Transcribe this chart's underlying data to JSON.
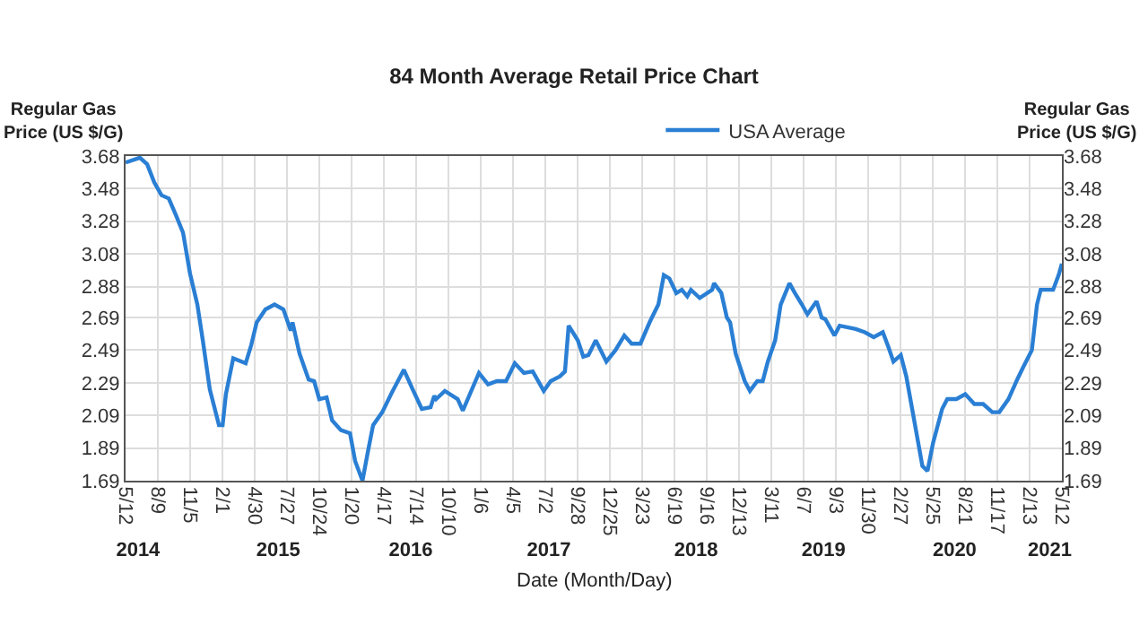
{
  "chart_data": {
    "type": "line",
    "title": "84 Month Average Retail Price Chart",
    "xlabel": "Date (Month/Day)",
    "ylabel": "Regular Gas\nPrice (US $/G)",
    "y2label": "Regular Gas\nPrice (US $/G)",
    "x": [
      "2014-05-12",
      "2014-06-20",
      "2014-07-10",
      "2014-07-29",
      "2014-08-18",
      "2014-09-07",
      "2014-09-26",
      "2014-10-16",
      "2014-11-04",
      "2014-11-24",
      "2014-12-09",
      "2014-12-28",
      "2015-01-22",
      "2015-02-01",
      "2015-02-10",
      "2015-03-02",
      "2015-04-05",
      "2015-04-20",
      "2015-05-05",
      "2015-05-29",
      "2015-06-23",
      "2015-07-17",
      "2015-08-06",
      "2015-08-11",
      "2015-08-30",
      "2015-09-24",
      "2015-10-09",
      "2015-10-23",
      "2015-11-12",
      "2015-11-27",
      "2015-12-21",
      "2016-01-15",
      "2016-01-29",
      "2016-02-18",
      "2016-03-04",
      "2016-03-18",
      "2016-04-12",
      "2016-05-06",
      "2016-06-10",
      "2016-07-04",
      "2016-07-29",
      "2016-08-22",
      "2016-09-01",
      "2016-09-06",
      "2016-09-30",
      "2016-11-04",
      "2016-11-18",
      "2017-01-01",
      "2017-01-26",
      "2017-02-19",
      "2017-03-16",
      "2017-04-09",
      "2017-05-04",
      "2017-05-28",
      "2017-06-27",
      "2017-07-16",
      "2017-08-10",
      "2017-08-24",
      "2017-09-03",
      "2017-09-28",
      "2017-10-13",
      "2017-10-27",
      "2017-11-16",
      "2017-12-15",
      "2018-01-09",
      "2018-02-02",
      "2018-02-22",
      "2018-03-18",
      "2018-04-12",
      "2018-05-06",
      "2018-05-21",
      "2018-06-05",
      "2018-06-24",
      "2018-07-09",
      "2018-07-24",
      "2018-08-03",
      "2018-08-27",
      "2018-09-30",
      "2018-10-05",
      "2018-10-25",
      "2018-11-09",
      "2018-11-18",
      "2018-12-03",
      "2018-12-28",
      "2019-01-11",
      "2019-01-31",
      "2019-02-15",
      "2019-03-01",
      "2019-03-21",
      "2019-04-05",
      "2019-04-29",
      "2019-05-14",
      "2019-06-02",
      "2019-06-17",
      "2019-07-12",
      "2019-07-26",
      "2019-08-05",
      "2019-08-30",
      "2019-09-13",
      "2019-10-27",
      "2019-11-21",
      "2019-12-15",
      "2020-01-09",
      "2020-01-24",
      "2020-02-07",
      "2020-02-27",
      "2020-03-13",
      "2020-04-06",
      "2020-04-26",
      "2020-05-10",
      "2020-05-25",
      "2020-06-19",
      "2020-07-03",
      "2020-07-28",
      "2020-08-21",
      "2020-09-15",
      "2020-10-09",
      "2020-11-03",
      "2020-11-22",
      "2020-12-17",
      "2021-01-10",
      "2021-01-25",
      "2021-02-19",
      "2021-03-05",
      "2021-03-15",
      "2021-04-18",
      "2021-05-03",
      "2021-05-12"
    ],
    "series": [
      {
        "name": "USA Average",
        "color": "#2a7fd4",
        "values": [
          3.64,
          3.67,
          3.63,
          3.52,
          3.44,
          3.42,
          3.32,
          3.21,
          2.96,
          2.77,
          2.55,
          2.25,
          2.03,
          2.03,
          2.22,
          2.44,
          2.41,
          2.52,
          2.66,
          2.74,
          2.77,
          2.74,
          2.61,
          2.66,
          2.47,
          2.31,
          2.3,
          2.19,
          2.2,
          2.06,
          2.0,
          1.98,
          1.81,
          1.69,
          1.87,
          2.03,
          2.11,
          2.22,
          2.37,
          2.25,
          2.13,
          2.14,
          2.21,
          2.19,
          2.24,
          2.19,
          2.12,
          2.35,
          2.28,
          2.3,
          2.3,
          2.41,
          2.35,
          2.36,
          2.24,
          2.3,
          2.33,
          2.36,
          2.64,
          2.55,
          2.45,
          2.46,
          2.55,
          2.42,
          2.49,
          2.58,
          2.53,
          2.53,
          2.66,
          2.77,
          2.95,
          2.93,
          2.84,
          2.86,
          2.82,
          2.86,
          2.81,
          2.86,
          2.9,
          2.84,
          2.69,
          2.66,
          2.47,
          2.3,
          2.24,
          2.3,
          2.3,
          2.42,
          2.55,
          2.77,
          2.9,
          2.84,
          2.77,
          2.71,
          2.79,
          2.69,
          2.68,
          2.58,
          2.64,
          2.62,
          2.6,
          2.57,
          2.6,
          2.51,
          2.42,
          2.46,
          2.33,
          2.03,
          1.78,
          1.75,
          1.92,
          2.13,
          2.19,
          2.19,
          2.22,
          2.16,
          2.16,
          2.11,
          2.11,
          2.19,
          2.31,
          2.38,
          2.49,
          2.77,
          2.86,
          2.86,
          2.95,
          3.02
        ]
      }
    ],
    "xlim": [
      "2014-05-12",
      "2021-05-12"
    ],
    "xticks": [
      {
        "value": "2014-05-12",
        "label": "5/12"
      },
      {
        "value": "2014-08-09",
        "label": "8/9"
      },
      {
        "value": "2014-11-05",
        "label": "11/5"
      },
      {
        "value": "2015-02-01",
        "label": "2/1"
      },
      {
        "value": "2015-04-30",
        "label": "4/30"
      },
      {
        "value": "2015-07-27",
        "label": "7/27"
      },
      {
        "value": "2015-10-24",
        "label": "10/24"
      },
      {
        "value": "2016-01-20",
        "label": "1/20"
      },
      {
        "value": "2016-04-17",
        "label": "4/17"
      },
      {
        "value": "2016-07-14",
        "label": "7/14"
      },
      {
        "value": "2016-10-10",
        "label": "10/10"
      },
      {
        "value": "2017-01-06",
        "label": "1/6"
      },
      {
        "value": "2017-04-05",
        "label": "4/5"
      },
      {
        "value": "2017-07-02",
        "label": "7/2"
      },
      {
        "value": "2017-09-28",
        "label": "9/28"
      },
      {
        "value": "2017-12-25",
        "label": "12/25"
      },
      {
        "value": "2018-03-23",
        "label": "3/23"
      },
      {
        "value": "2018-06-19",
        "label": "6/19"
      },
      {
        "value": "2018-09-16",
        "label": "9/16"
      },
      {
        "value": "2018-12-13",
        "label": "12/13"
      },
      {
        "value": "2019-03-11",
        "label": "3/11"
      },
      {
        "value": "2019-06-07",
        "label": "6/7"
      },
      {
        "value": "2019-09-03",
        "label": "9/3"
      },
      {
        "value": "2019-11-30",
        "label": "11/30"
      },
      {
        "value": "2020-02-27",
        "label": "2/27"
      },
      {
        "value": "2020-05-25",
        "label": "5/25"
      },
      {
        "value": "2020-08-21",
        "label": "8/21"
      },
      {
        "value": "2020-11-17",
        "label": "11/17"
      },
      {
        "value": "2021-02-13",
        "label": "2/13"
      },
      {
        "value": "2021-05-12",
        "label": "5/12"
      }
    ],
    "x2lim": [
      "2014-05-12",
      "2021-05-12"
    ],
    "x2ticks": [
      {
        "value": "2014-06-15",
        "label": "2014"
      },
      {
        "value": "2015-07-03",
        "label": "2015"
      },
      {
        "value": "2016-06-29",
        "label": "2016"
      },
      {
        "value": "2017-07-11",
        "label": "2017"
      },
      {
        "value": "2018-08-17",
        "label": "2018"
      },
      {
        "value": "2019-07-31",
        "label": "2019"
      },
      {
        "value": "2020-07-23",
        "label": "2020"
      },
      {
        "value": "2021-04-09",
        "label": "2021"
      }
    ],
    "ylim": [
      1.69,
      3.68
    ],
    "yticks": [
      1.69,
      1.89,
      2.09,
      2.29,
      2.49,
      2.69,
      2.88,
      3.08,
      3.28,
      3.48,
      3.68
    ],
    "y2lim": [
      1.69,
      3.68
    ],
    "y2ticks": [
      1.69,
      1.89,
      2.09,
      2.29,
      2.49,
      2.69,
      2.88,
      3.08,
      3.28,
      3.48,
      3.68
    ],
    "grid": true,
    "legend": "top right",
    "marker": "none",
    "line_style": "solid"
  }
}
